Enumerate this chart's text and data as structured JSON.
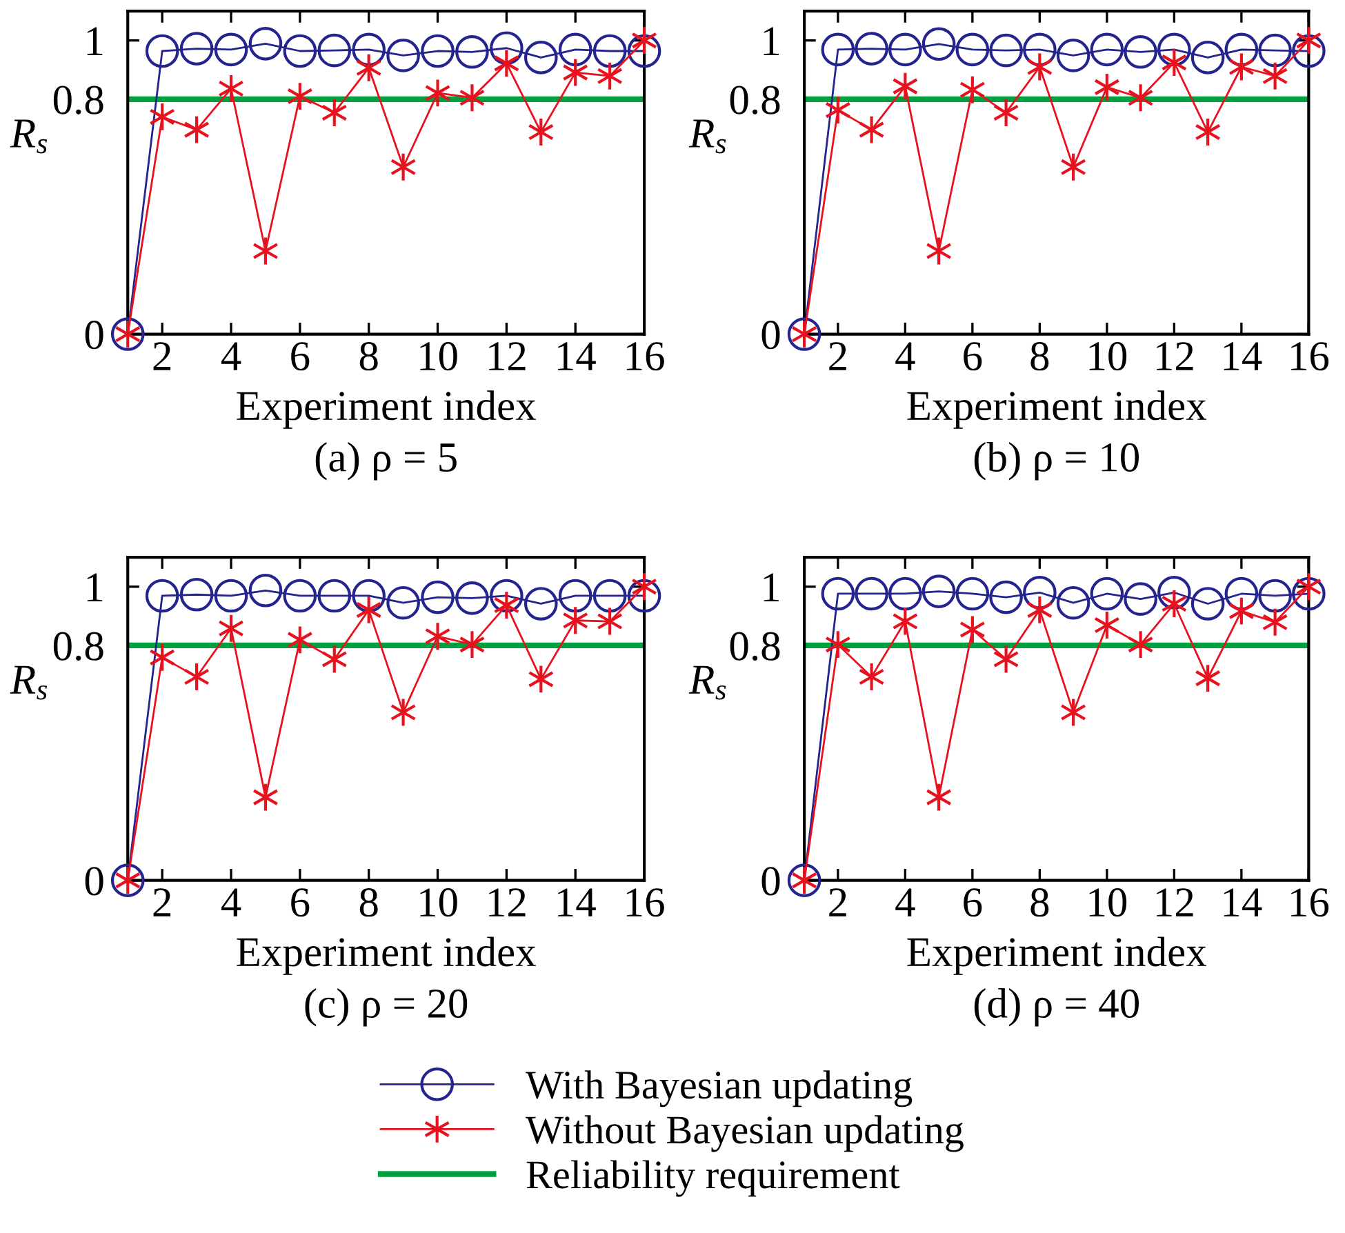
{
  "chart_data": [
    {
      "type": "line",
      "title": "(a) ρ = 5",
      "xlabel": "Experiment index",
      "ylabel": "R$_{s}$",
      "x": [
        1,
        2,
        3,
        4,
        5,
        6,
        7,
        8,
        9,
        10,
        11,
        12,
        13,
        14,
        15,
        16
      ],
      "xlim": [
        1,
        16
      ],
      "xticks": [
        2,
        4,
        6,
        8,
        10,
        12,
        14,
        16
      ],
      "ylim": [
        0,
        1.1
      ],
      "yticks": [
        0,
        0.8,
        1
      ],
      "legend": "bottom",
      "series": [
        {
          "name": "With Bayesian updating",
          "color": "#24248f",
          "marker": "circle",
          "values": [
            0,
            0.964,
            0.972,
            0.969,
            0.989,
            0.964,
            0.966,
            0.969,
            0.949,
            0.964,
            0.961,
            0.974,
            0.942,
            0.969,
            0.964,
            0.964
          ]
        },
        {
          "name": "Without Bayesian updating",
          "color": "#e8121f",
          "marker": "cross",
          "values": [
            0,
            0.74,
            0.696,
            0.836,
            0.283,
            0.81,
            0.754,
            0.907,
            0.569,
            0.821,
            0.805,
            0.922,
            0.688,
            0.891,
            0.879,
            1.0
          ]
        }
      ],
      "ref_lines": [
        {
          "axis": "y",
          "value": 0.8,
          "label": "Reliability requirement",
          "color": "#00a040",
          "line_style": "solid"
        }
      ]
    },
    {
      "type": "line",
      "title": "(b) ρ = 10",
      "xlabel": "Experiment index",
      "ylabel": "R$_{s}$",
      "x": [
        1,
        2,
        3,
        4,
        5,
        6,
        7,
        8,
        9,
        10,
        11,
        12,
        13,
        14,
        15,
        16
      ],
      "xlim": [
        1,
        16
      ],
      "xticks": [
        2,
        4,
        6,
        8,
        10,
        12,
        14,
        16
      ],
      "ylim": [
        0,
        1.1
      ],
      "yticks": [
        0,
        0.8,
        1
      ],
      "series": [
        {
          "color": "#24248f",
          "marker": "circle",
          "values": [
            0,
            0.969,
            0.972,
            0.969,
            0.988,
            0.969,
            0.966,
            0.969,
            0.949,
            0.969,
            0.961,
            0.969,
            0.942,
            0.969,
            0.966,
            0.964
          ]
        },
        {
          "color": "#e8121f",
          "marker": "cross",
          "values": [
            0,
            0.763,
            0.696,
            0.844,
            0.283,
            0.832,
            0.754,
            0.91,
            0.569,
            0.841,
            0.805,
            0.925,
            0.688,
            0.91,
            0.879,
            1.0
          ]
        }
      ],
      "ref_lines": [
        {
          "axis": "y",
          "value": 0.8,
          "color": "#00a040",
          "line_style": "solid"
        }
      ]
    },
    {
      "type": "line",
      "title": "(c) ρ = 20",
      "xlabel": "Experiment index",
      "ylabel": "R$_{s}$",
      "x": [
        1,
        2,
        3,
        4,
        5,
        6,
        7,
        8,
        9,
        10,
        11,
        12,
        13,
        14,
        15,
        16
      ],
      "xlim": [
        1,
        16
      ],
      "xticks": [
        2,
        4,
        6,
        8,
        10,
        12,
        14,
        16
      ],
      "ylim": [
        0,
        1.1
      ],
      "yticks": [
        0,
        0.8,
        1
      ],
      "series": [
        {
          "color": "#24248f",
          "marker": "circle",
          "values": [
            0,
            0.969,
            0.973,
            0.969,
            0.987,
            0.969,
            0.969,
            0.969,
            0.945,
            0.964,
            0.961,
            0.969,
            0.942,
            0.969,
            0.969,
            0.969
          ]
        },
        {
          "color": "#e8121f",
          "marker": "cross",
          "values": [
            0,
            0.759,
            0.693,
            0.858,
            0.283,
            0.819,
            0.753,
            0.921,
            0.572,
            0.831,
            0.803,
            0.937,
            0.685,
            0.885,
            0.882,
            1.0
          ]
        }
      ],
      "ref_lines": [
        {
          "axis": "y",
          "value": 0.8,
          "color": "#00a040",
          "line_style": "solid"
        }
      ]
    },
    {
      "type": "line",
      "title": "(d) ρ = 40",
      "xlabel": "Experiment index",
      "ylabel": "R$_{s}$",
      "x": [
        1,
        2,
        3,
        4,
        5,
        6,
        7,
        8,
        9,
        10,
        11,
        12,
        13,
        14,
        15,
        16
      ],
      "xlim": [
        1,
        16
      ],
      "xticks": [
        2,
        4,
        6,
        8,
        10,
        12,
        14,
        16
      ],
      "ylim": [
        0,
        1.1
      ],
      "yticks": [
        0,
        0.8,
        1
      ],
      "series": [
        {
          "color": "#24248f",
          "marker": "circle",
          "values": [
            0,
            0.976,
            0.976,
            0.976,
            0.984,
            0.976,
            0.964,
            0.98,
            0.945,
            0.976,
            0.958,
            0.98,
            0.942,
            0.976,
            0.969,
            0.976
          ]
        },
        {
          "color": "#e8121f",
          "marker": "cross",
          "values": [
            0,
            0.803,
            0.693,
            0.882,
            0.283,
            0.854,
            0.753,
            0.921,
            0.572,
            0.869,
            0.803,
            0.942,
            0.688,
            0.917,
            0.879,
            1.0
          ]
        }
      ],
      "ref_lines": [
        {
          "axis": "y",
          "value": 0.8,
          "color": "#00a040",
          "line_style": "solid"
        }
      ]
    }
  ]
}
